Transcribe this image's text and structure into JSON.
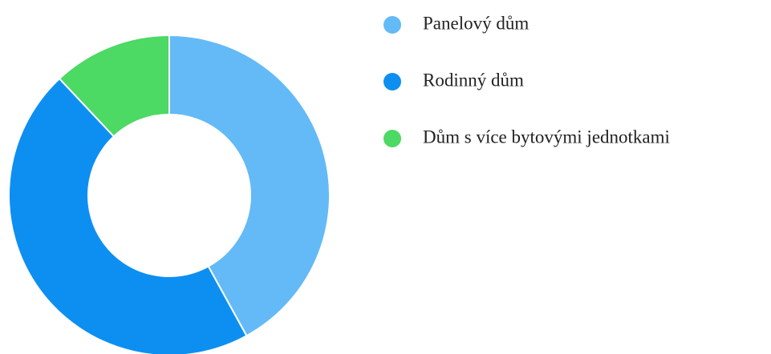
{
  "chart_data": {
    "type": "donut",
    "categories": [
      "Panelový dům",
      "Rodinný dům",
      "Dům s více bytovými jednotkami"
    ],
    "values": [
      42,
      46,
      12
    ],
    "colors": [
      "#64baf6",
      "#0d8ff2",
      "#4cd964"
    ],
    "legend": "right"
  }
}
